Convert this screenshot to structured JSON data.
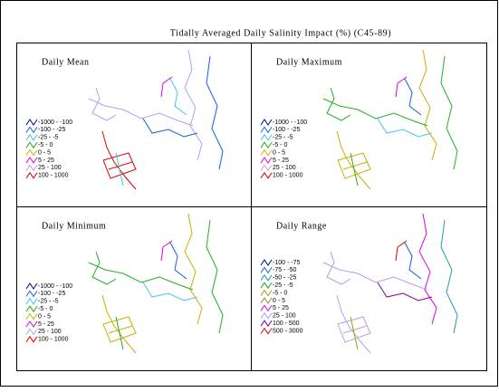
{
  "title": "Tidally Averaged Daily Salinity Impact (%) (C45-89)",
  "panels": [
    {
      "title": "Daily Mean",
      "legend": [
        {
          "label": "-1000 - -100",
          "color": "#000080"
        },
        {
          "label": "-100 - -25",
          "color": "#1060e0"
        },
        {
          "label": "-25 - -5",
          "color": "#40c8f0"
        },
        {
          "label": "-5 - 0",
          "color": "#20b020"
        },
        {
          "label": "0 - 5",
          "color": "#c8b000"
        },
        {
          "label": "5 - 25",
          "color": "#e000e0"
        },
        {
          "label": "25 - 100",
          "color": "#b0a0f0"
        },
        {
          "label": "100 - 1000",
          "color": "#e00000"
        }
      ]
    },
    {
      "title": "Daily Maximum",
      "legend": [
        {
          "label": "-1000 - -100",
          "color": "#000080"
        },
        {
          "label": "-100 - -25",
          "color": "#1060e0"
        },
        {
          "label": "-25 - -5",
          "color": "#40c8f0"
        },
        {
          "label": "-5 - 0",
          "color": "#20b020"
        },
        {
          "label": "0 - 5",
          "color": "#c8b000"
        },
        {
          "label": "5 - 25",
          "color": "#e000e0"
        },
        {
          "label": "25 - 100",
          "color": "#b0a0f0"
        },
        {
          "label": "100 - 1000",
          "color": "#e00000"
        }
      ]
    },
    {
      "title": "Daily Minimum",
      "legend": [
        {
          "label": "-1000 - -100",
          "color": "#000080"
        },
        {
          "label": "-100 - -25",
          "color": "#1060e0"
        },
        {
          "label": "-25 - -5",
          "color": "#40c8f0"
        },
        {
          "label": "-5 - 0",
          "color": "#20b020"
        },
        {
          "label": "0 - 5",
          "color": "#c8b000"
        },
        {
          "label": "5 - 25",
          "color": "#e000e0"
        },
        {
          "label": "25 - 100",
          "color": "#b0a0f0"
        },
        {
          "label": "100 - 1000",
          "color": "#e00000"
        }
      ]
    },
    {
      "title": "Daily Range",
      "legend": [
        {
          "label": "-100 - -75",
          "color": "#000080"
        },
        {
          "label": "-75 - -50",
          "color": "#1060e0"
        },
        {
          "label": "-50 - -25",
          "color": "#20a0a0"
        },
        {
          "label": "-25 - -5",
          "color": "#20b020"
        },
        {
          "label": "-5 - 0",
          "color": "#a0a000"
        },
        {
          "label": "0 - 5",
          "color": "#a08050"
        },
        {
          "label": "5 - 25",
          "color": "#e000e0"
        },
        {
          "label": "25 - 100",
          "color": "#b0a0f0"
        },
        {
          "label": "100 - 500",
          "color": "#8000a0"
        },
        {
          "label": "500 - 3000",
          "color": "#e00000"
        }
      ]
    }
  ]
}
